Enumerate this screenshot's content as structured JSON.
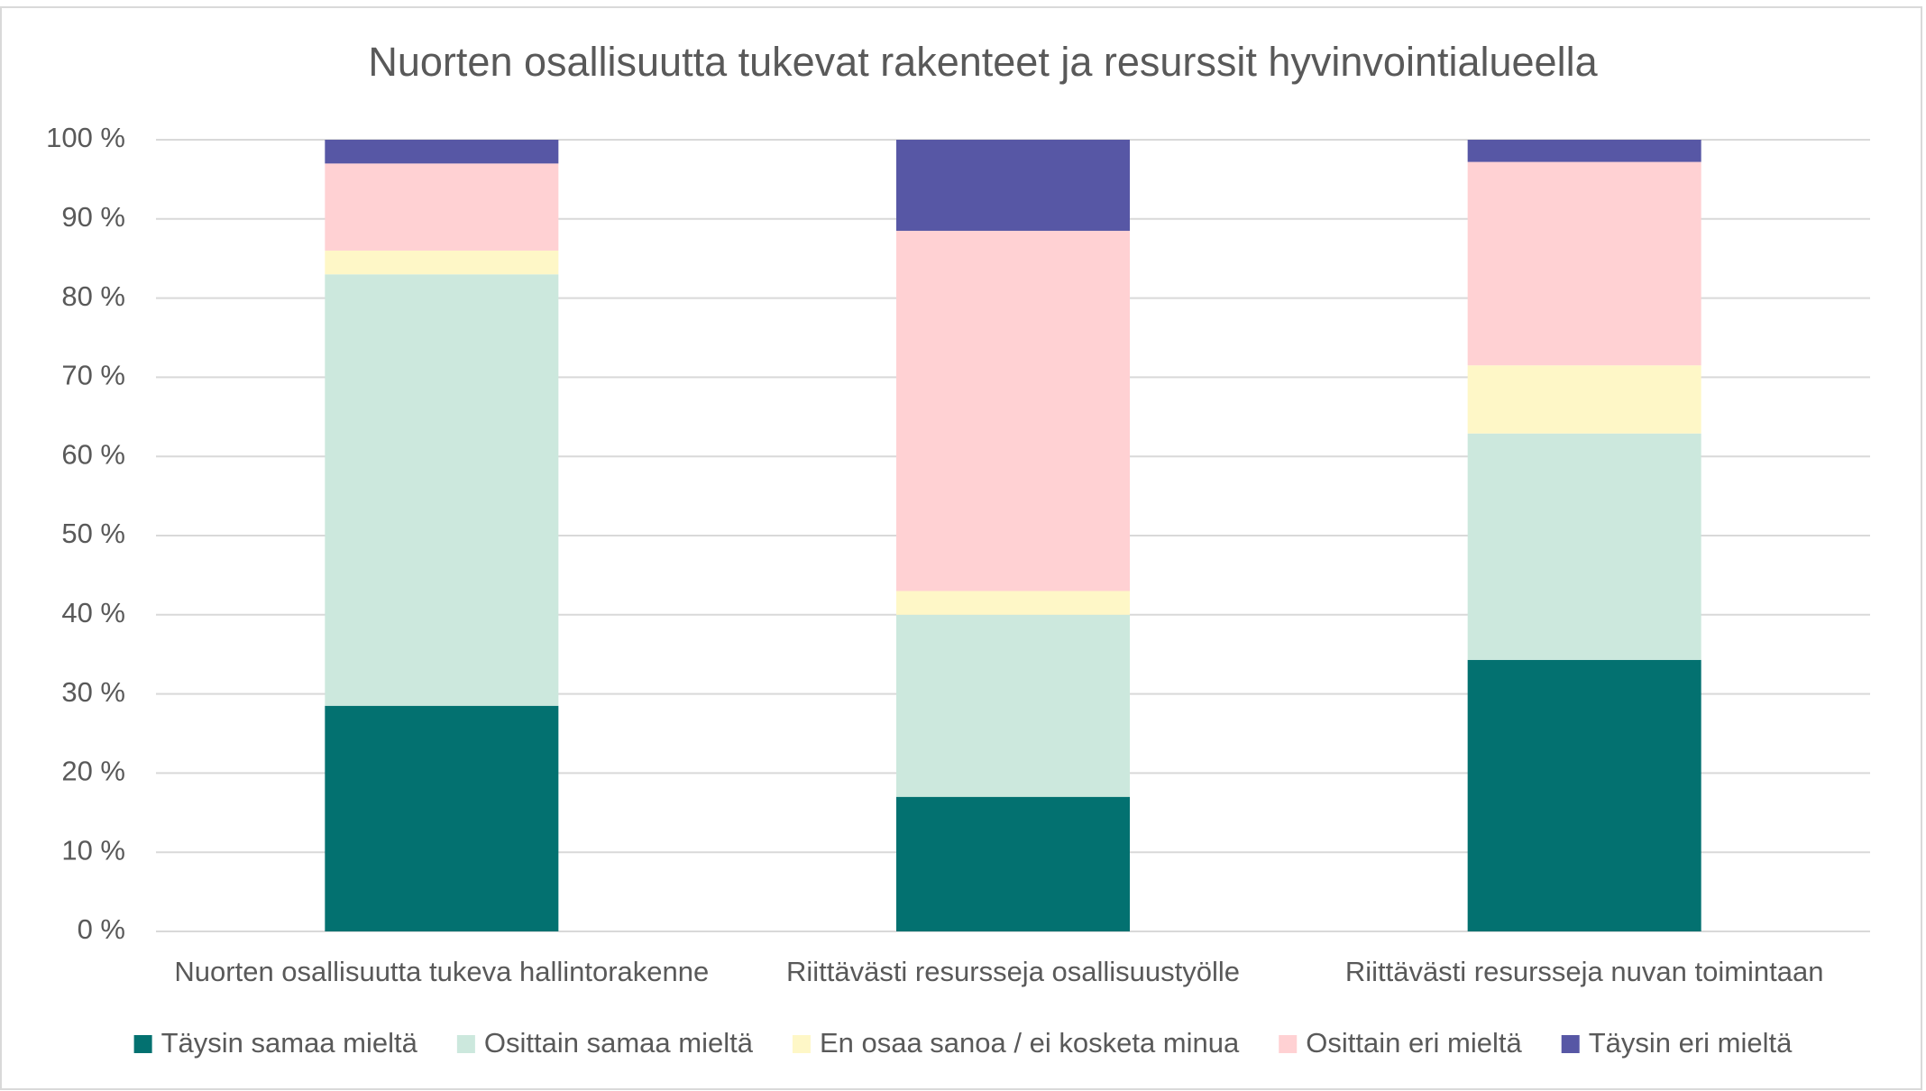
{
  "chart_data": {
    "type": "stacked_bar",
    "title": "Nuorten osallisuutta tukevat rakenteet ja resurssit hyvinvointialueella",
    "categories": [
      "Nuorten osallisuutta tukeva hallintorakenne",
      "Riittävästi resursseja osallisuustyölle",
      "Riittävästi resursseja nuvan toimintaan"
    ],
    "series": [
      {
        "name": "Täysin samaa mieltä",
        "color": "#037170",
        "values": [
          28.5,
          17,
          34.3
        ]
      },
      {
        "name": "Osittain samaa mieltä",
        "color": "#cce8dd",
        "values": [
          54.5,
          23,
          28.6
        ]
      },
      {
        "name": "En osaa sanoa / ei kosketa minua",
        "color": "#fef7c7",
        "values": [
          3,
          3,
          8.6
        ]
      },
      {
        "name": "Osittain eri mieltä",
        "color": "#ffd1d3",
        "values": [
          11,
          45.5,
          25.7
        ]
      },
      {
        "name": "Täysin eri mieltä",
        "color": "#5757a5",
        "values": [
          3,
          11.5,
          2.8
        ]
      }
    ],
    "ylim": [
      0,
      100
    ],
    "yticks": [
      {
        "value": 0,
        "label": "0 %"
      },
      {
        "value": 10,
        "label": "10 %"
      },
      {
        "value": 20,
        "label": "20 %"
      },
      {
        "value": 30,
        "label": "30 %"
      },
      {
        "value": 40,
        "label": "40 %"
      },
      {
        "value": 50,
        "label": "50 %"
      },
      {
        "value": 60,
        "label": "60 %"
      },
      {
        "value": 70,
        "label": "70 %"
      },
      {
        "value": 80,
        "label": "80 %"
      },
      {
        "value": 90,
        "label": "90 %"
      },
      {
        "value": 100,
        "label": "100 %"
      }
    ],
    "grid": true,
    "legend": "bottom"
  }
}
